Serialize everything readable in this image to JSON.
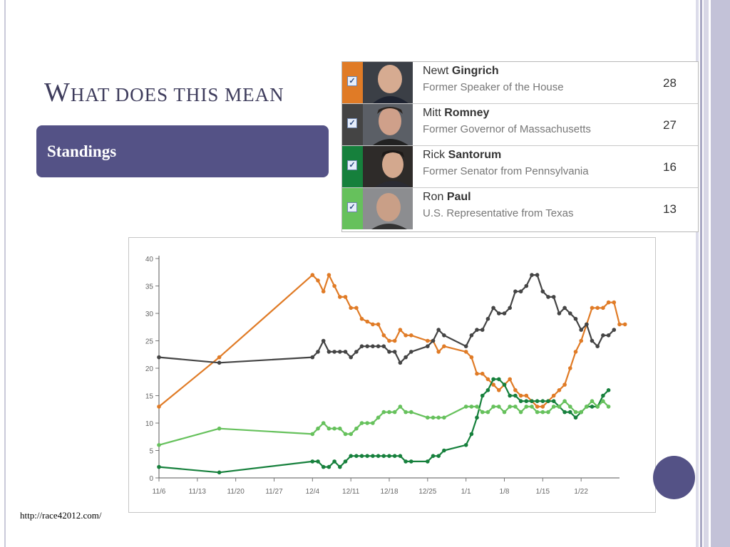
{
  "slide": {
    "title": "What does this mean",
    "box_label": "Standings",
    "url": "http://race42012.com/",
    "accent": "#545286"
  },
  "candidates": [
    {
      "first": "Newt",
      "last": "Gingrich",
      "role": "Former Speaker of the House",
      "count": "28",
      "color": "#e07b26"
    },
    {
      "first": "Mitt",
      "last": "Romney",
      "role": "Former Governor of Massachusetts",
      "count": "27",
      "color": "#444444"
    },
    {
      "first": "Rick",
      "last": "Santorum",
      "role": "Former Senator from Pennsylvania",
      "count": "16",
      "color": "#16803c"
    },
    {
      "first": "Ron",
      "last": "Paul",
      "role": "U.S. Representative from Texas",
      "count": "13",
      "color": "#66c15c"
    }
  ],
  "chart_data": {
    "type": "line",
    "title": "",
    "xlabel": "",
    "ylabel": "",
    "ylim": [
      0,
      40
    ],
    "yticks": [
      "0",
      "5",
      "10",
      "15",
      "20",
      "25",
      "30",
      "35",
      "40"
    ],
    "x_day_range": [
      0,
      84
    ],
    "xticks": [
      {
        "label": "11/6",
        "day": 0
      },
      {
        "label": "11/13",
        "day": 7
      },
      {
        "label": "11/20",
        "day": 14
      },
      {
        "label": "11/27",
        "day": 21
      },
      {
        "label": "12/4",
        "day": 28
      },
      {
        "label": "12/11",
        "day": 35
      },
      {
        "label": "12/18",
        "day": 42
      },
      {
        "label": "12/25",
        "day": 49
      },
      {
        "label": "1/1",
        "day": 56
      },
      {
        "label": "1/8",
        "day": 63
      },
      {
        "label": "1/15",
        "day": 70
      },
      {
        "label": "1/22",
        "day": 77
      }
    ],
    "series": [
      {
        "name": "Gingrich",
        "color": "#e07b26",
        "points": [
          [
            0,
            13
          ],
          [
            11,
            22
          ],
          [
            28,
            37
          ],
          [
            29,
            36
          ],
          [
            30,
            34
          ],
          [
            31,
            37
          ],
          [
            32,
            35
          ],
          [
            33,
            33
          ],
          [
            34,
            33
          ],
          [
            35,
            31
          ],
          [
            36,
            31
          ],
          [
            37,
            29
          ],
          [
            38,
            28.5
          ],
          [
            39,
            28
          ],
          [
            40,
            28
          ],
          [
            41,
            26
          ],
          [
            42,
            25
          ],
          [
            43,
            25
          ],
          [
            44,
            27
          ],
          [
            45,
            26
          ],
          [
            46,
            26
          ],
          [
            49,
            25
          ],
          [
            50,
            25
          ],
          [
            51,
            23
          ],
          [
            52,
            24
          ],
          [
            56,
            23
          ],
          [
            57,
            22
          ],
          [
            58,
            19
          ],
          [
            59,
            19
          ],
          [
            60,
            18
          ],
          [
            61,
            17
          ],
          [
            62,
            16
          ],
          [
            63,
            17
          ],
          [
            64,
            18
          ],
          [
            65,
            16
          ],
          [
            66,
            15
          ],
          [
            67,
            15
          ],
          [
            68,
            14
          ],
          [
            69,
            13
          ],
          [
            70,
            13
          ],
          [
            71,
            14
          ],
          [
            72,
            15
          ],
          [
            73,
            16
          ],
          [
            74,
            17
          ],
          [
            75,
            20
          ],
          [
            76,
            23
          ],
          [
            77,
            25
          ],
          [
            78,
            28
          ],
          [
            79,
            31
          ],
          [
            80,
            31
          ],
          [
            81,
            31
          ],
          [
            82,
            32
          ],
          [
            83,
            32
          ],
          [
            84,
            28
          ],
          [
            85,
            28
          ]
        ]
      },
      {
        "name": "Romney",
        "color": "#444444",
        "points": [
          [
            0,
            22
          ],
          [
            11,
            21
          ],
          [
            28,
            22
          ],
          [
            29,
            23
          ],
          [
            30,
            25
          ],
          [
            31,
            23
          ],
          [
            32,
            23
          ],
          [
            33,
            23
          ],
          [
            34,
            23
          ],
          [
            35,
            22
          ],
          [
            36,
            23
          ],
          [
            37,
            24
          ],
          [
            38,
            24
          ],
          [
            39,
            24
          ],
          [
            40,
            24
          ],
          [
            41,
            24
          ],
          [
            42,
            23
          ],
          [
            43,
            23
          ],
          [
            44,
            21
          ],
          [
            45,
            22
          ],
          [
            46,
            23
          ],
          [
            49,
            24
          ],
          [
            50,
            25
          ],
          [
            51,
            27
          ],
          [
            52,
            26
          ],
          [
            56,
            24
          ],
          [
            57,
            26
          ],
          [
            58,
            27
          ],
          [
            59,
            27
          ],
          [
            60,
            29
          ],
          [
            61,
            31
          ],
          [
            62,
            30
          ],
          [
            63,
            30
          ],
          [
            64,
            31
          ],
          [
            65,
            34
          ],
          [
            66,
            34
          ],
          [
            67,
            35
          ],
          [
            68,
            37
          ],
          [
            69,
            37
          ],
          [
            70,
            34
          ],
          [
            71,
            33
          ],
          [
            72,
            33
          ],
          [
            73,
            30
          ],
          [
            74,
            31
          ],
          [
            75,
            30
          ],
          [
            76,
            29
          ],
          [
            77,
            27
          ],
          [
            78,
            28
          ],
          [
            79,
            25
          ],
          [
            80,
            24
          ],
          [
            81,
            26
          ],
          [
            82,
            26
          ],
          [
            83,
            27
          ]
        ]
      },
      {
        "name": "Santorum",
        "color": "#16803c",
        "points": [
          [
            0,
            2
          ],
          [
            11,
            1
          ],
          [
            28,
            3
          ],
          [
            29,
            3
          ],
          [
            30,
            2
          ],
          [
            31,
            2
          ],
          [
            32,
            3
          ],
          [
            33,
            2
          ],
          [
            34,
            3
          ],
          [
            35,
            4
          ],
          [
            36,
            4
          ],
          [
            37,
            4
          ],
          [
            38,
            4
          ],
          [
            39,
            4
          ],
          [
            40,
            4
          ],
          [
            41,
            4
          ],
          [
            42,
            4
          ],
          [
            43,
            4
          ],
          [
            44,
            4
          ],
          [
            45,
            3
          ],
          [
            46,
            3
          ],
          [
            49,
            3
          ],
          [
            50,
            4
          ],
          [
            51,
            4
          ],
          [
            52,
            5
          ],
          [
            56,
            6
          ],
          [
            57,
            8
          ],
          [
            58,
            11
          ],
          [
            59,
            15
          ],
          [
            60,
            16
          ],
          [
            61,
            18
          ],
          [
            62,
            18
          ],
          [
            63,
            17
          ],
          [
            64,
            15
          ],
          [
            65,
            15
          ],
          [
            66,
            14
          ],
          [
            67,
            14
          ],
          [
            68,
            14
          ],
          [
            69,
            14
          ],
          [
            70,
            14
          ],
          [
            71,
            14
          ],
          [
            72,
            14
          ],
          [
            73,
            13
          ],
          [
            74,
            12
          ],
          [
            75,
            12
          ],
          [
            76,
            11
          ],
          [
            77,
            12
          ],
          [
            78,
            13
          ],
          [
            79,
            13
          ],
          [
            80,
            13
          ],
          [
            81,
            15
          ],
          [
            82,
            16
          ]
        ]
      },
      {
        "name": "Paul",
        "color": "#66c15c",
        "points": [
          [
            0,
            6
          ],
          [
            11,
            9
          ],
          [
            28,
            8
          ],
          [
            29,
            9
          ],
          [
            30,
            10
          ],
          [
            31,
            9
          ],
          [
            32,
            9
          ],
          [
            33,
            9
          ],
          [
            34,
            8
          ],
          [
            35,
            8
          ],
          [
            36,
            9
          ],
          [
            37,
            10
          ],
          [
            38,
            10
          ],
          [
            39,
            10
          ],
          [
            40,
            11
          ],
          [
            41,
            12
          ],
          [
            42,
            12
          ],
          [
            43,
            12
          ],
          [
            44,
            13
          ],
          [
            45,
            12
          ],
          [
            46,
            12
          ],
          [
            49,
            11
          ],
          [
            50,
            11
          ],
          [
            51,
            11
          ],
          [
            52,
            11
          ],
          [
            56,
            13
          ],
          [
            57,
            13
          ],
          [
            58,
            13
          ],
          [
            59,
            12
          ],
          [
            60,
            12
          ],
          [
            61,
            13
          ],
          [
            62,
            13
          ],
          [
            63,
            12
          ],
          [
            64,
            13
          ],
          [
            65,
            13
          ],
          [
            66,
            12
          ],
          [
            67,
            13
          ],
          [
            68,
            13
          ],
          [
            69,
            12
          ],
          [
            70,
            12
          ],
          [
            71,
            12
          ],
          [
            72,
            13
          ],
          [
            73,
            13
          ],
          [
            74,
            14
          ],
          [
            75,
            13
          ],
          [
            76,
            12
          ],
          [
            77,
            12
          ],
          [
            78,
            13
          ],
          [
            79,
            14
          ],
          [
            80,
            13
          ],
          [
            81,
            14
          ],
          [
            82,
            13
          ]
        ]
      }
    ]
  }
}
